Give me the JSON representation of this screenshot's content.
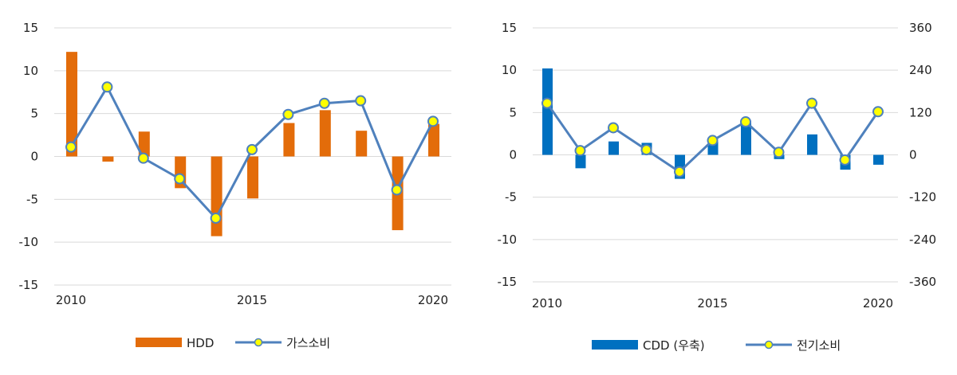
{
  "chart_data": [
    {
      "type": "bar+line",
      "x": [
        2010,
        2011,
        2012,
        2013,
        2014,
        2015,
        2016,
        2017,
        2018,
        2019,
        2020
      ],
      "xticks": [
        "2010",
        "2015",
        "2020"
      ],
      "ylim": [
        -15,
        15
      ],
      "yticks": [
        "15",
        "10",
        "5",
        "0",
        "-5",
        "-10",
        "-15"
      ],
      "series": [
        {
          "name": "HDD",
          "kind": "bar",
          "color": "#E36C0A",
          "values": [
            12.2,
            -0.6,
            2.9,
            -3.7,
            -9.3,
            -4.9,
            3.9,
            5.4,
            3.0,
            -8.6,
            3.8
          ]
        },
        {
          "name": "가스소비",
          "kind": "line",
          "color": "#4F81BD",
          "marker_color": "#FFFF00",
          "values": [
            1.1,
            8.1,
            -0.2,
            -2.6,
            -7.2,
            0.8,
            4.9,
            6.2,
            6.5,
            -3.9,
            4.1
          ]
        }
      ],
      "legend_position": "bottom"
    },
    {
      "type": "bar+line",
      "x": [
        2010,
        2011,
        2012,
        2013,
        2014,
        2015,
        2016,
        2017,
        2018,
        2019,
        2020
      ],
      "xticks": [
        "2010",
        "2015",
        "2020"
      ],
      "ylim": [
        -15,
        15
      ],
      "yticks": [
        "15",
        "10",
        "5",
        "0",
        "-5",
        "-10",
        "-15"
      ],
      "y2lim": [
        -360,
        360
      ],
      "y2ticks": [
        "360",
        "240",
        "120",
        "0",
        "-120",
        "-240",
        "-360"
      ],
      "series": [
        {
          "name": "CDD (우축)",
          "kind": "bar",
          "axis": "right",
          "color": "#0070C0",
          "values": [
            245,
            -38,
            38,
            34,
            -68,
            38,
            96,
            -12,
            58,
            -42,
            -28
          ]
        },
        {
          "name": "전기소비",
          "kind": "line",
          "axis": "left",
          "color": "#4F81BD",
          "marker_color": "#FFFF00",
          "values": [
            6.1,
            0.5,
            3.2,
            0.6,
            -2.0,
            1.7,
            3.9,
            0.3,
            6.1,
            -0.6,
            5.1
          ]
        }
      ],
      "legend_position": "bottom"
    }
  ]
}
